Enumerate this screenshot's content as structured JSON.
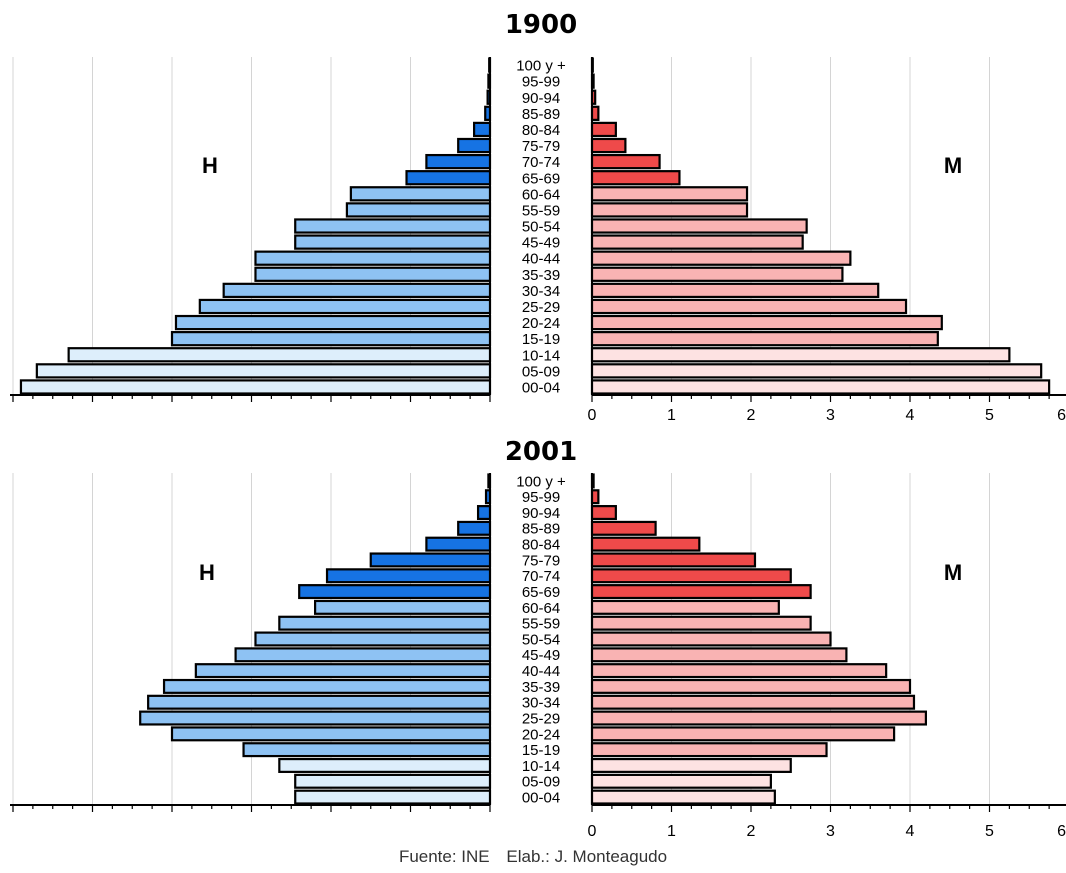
{
  "footer": {
    "source": "Fuente: INE",
    "author": "Elab.: J. Monteagudo"
  },
  "chart_data": [
    {
      "type": "bar",
      "subtype": "population-pyramid",
      "title": "1900",
      "left_label": "H",
      "right_label": "M",
      "categories": [
        "00-04",
        "05-09",
        "10-14",
        "15-19",
        "20-24",
        "25-29",
        "30-34",
        "35-39",
        "40-44",
        "45-49",
        "50-54",
        "55-59",
        "60-64",
        "65-69",
        "70-74",
        "75-79",
        "80-84",
        "85-89",
        "90-94",
        "95-99",
        "100 y +"
      ],
      "series": [
        {
          "name": "H",
          "values": [
            5.9,
            5.7,
            5.3,
            4.0,
            3.95,
            3.65,
            3.35,
            2.95,
            2.95,
            2.45,
            2.45,
            1.8,
            1.75,
            1.05,
            0.8,
            0.4,
            0.2,
            0.06,
            0.03,
            0.02,
            0.01
          ]
        },
        {
          "name": "M",
          "values": [
            5.75,
            5.65,
            5.25,
            4.35,
            4.4,
            3.95,
            3.6,
            3.15,
            3.25,
            2.65,
            2.7,
            1.95,
            1.95,
            1.1,
            0.85,
            0.42,
            0.3,
            0.08,
            0.04,
            0.02,
            0.01
          ]
        }
      ],
      "xlim": [
        0,
        6
      ],
      "right_ticks": [
        "0",
        "1",
        "2",
        "3",
        "4",
        "5",
        "6"
      ],
      "left_ticks_labeled": false,
      "grid": true,
      "colors": {
        "H_young": "#ddeefb",
        "H_adult": "#8ec2f3",
        "H_old": "#1673e3",
        "M_young": "#fde2e2",
        "M_adult": "#f9b3b3",
        "M_old": "#ef4a4a"
      }
    },
    {
      "type": "bar",
      "subtype": "population-pyramid",
      "title": "2001",
      "left_label": "H",
      "right_label": "M",
      "categories": [
        "00-04",
        "05-09",
        "10-14",
        "15-19",
        "20-24",
        "25-29",
        "30-34",
        "35-39",
        "40-44",
        "45-49",
        "50-54",
        "55-59",
        "60-64",
        "65-69",
        "70-74",
        "75-79",
        "80-84",
        "85-89",
        "90-94",
        "95-99",
        "100 y +"
      ],
      "series": [
        {
          "name": "H",
          "values": [
            2.45,
            2.45,
            2.65,
            3.1,
            4.0,
            4.4,
            4.3,
            4.1,
            3.7,
            3.2,
            2.95,
            2.65,
            2.2,
            2.4,
            2.05,
            1.5,
            0.8,
            0.4,
            0.15,
            0.05,
            0.02
          ]
        },
        {
          "name": "M",
          "values": [
            2.3,
            2.25,
            2.5,
            2.95,
            3.8,
            4.2,
            4.05,
            4.0,
            3.7,
            3.2,
            3.0,
            2.75,
            2.35,
            2.75,
            2.5,
            2.05,
            1.35,
            0.8,
            0.3,
            0.08,
            0.02
          ]
        }
      ],
      "xlim": [
        0,
        6
      ],
      "right_ticks": [
        "0",
        "1",
        "2",
        "3",
        "4",
        "5",
        "6"
      ],
      "left_ticks_labeled": false,
      "grid": true,
      "colors": {
        "H_young": "#ddeefb",
        "H_adult": "#8ec2f3",
        "H_old": "#1673e3",
        "M_young": "#fde2e2",
        "M_adult": "#f9b3b3",
        "M_old": "#ef4a4a"
      }
    }
  ]
}
